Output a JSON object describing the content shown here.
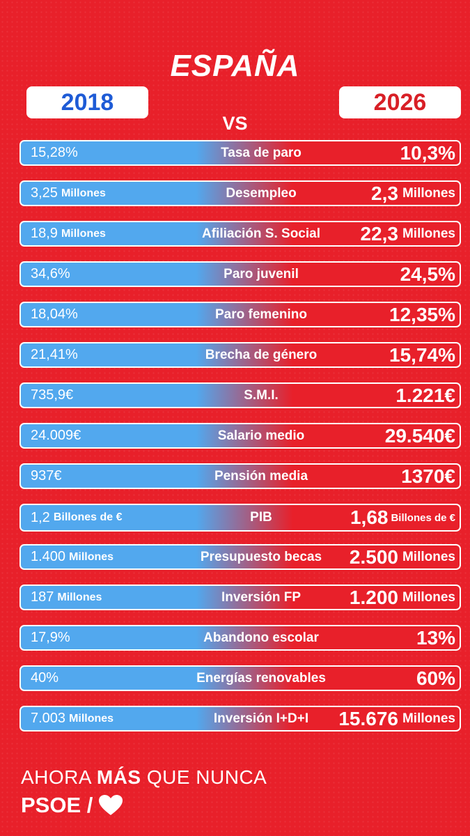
{
  "title": "ESPAÑA",
  "year_left": "2018",
  "year_right": "2026",
  "vs": "VS",
  "rows": [
    {
      "label": "Tasa de paro",
      "left_value": "15,28%",
      "left_unit": "",
      "right_value": "10,3%",
      "right_unit": ""
    },
    {
      "label": "Desempleo",
      "left_value": "3,25",
      "left_unit": "Millones",
      "right_value": "2,3",
      "right_unit": "Millones"
    },
    {
      "label": "Afiliación S. Social",
      "left_value": "18,9",
      "left_unit": "Millones",
      "right_value": "22,3",
      "right_unit": "Millones"
    },
    {
      "label": "Paro juvenil",
      "left_value": "34,6%",
      "left_unit": "",
      "right_value": "24,5%",
      "right_unit": ""
    },
    {
      "label": "Paro femenino",
      "left_value": "18,04%",
      "left_unit": "",
      "right_value": "12,35%",
      "right_unit": ""
    },
    {
      "label": "Brecha de género",
      "left_value": "21,41%",
      "left_unit": "",
      "right_value": "15,74%",
      "right_unit": ""
    },
    {
      "label": "S.M.I.",
      "left_value": "735,9€",
      "left_unit": "",
      "right_value": "1.221€",
      "right_unit": ""
    },
    {
      "label": "Salario medio",
      "left_value": "24.009€",
      "left_unit": "",
      "right_value": "29.540€",
      "right_unit": ""
    },
    {
      "label": "Pensión media",
      "left_value": "937€",
      "left_unit": "",
      "right_value": "1370€",
      "right_unit": ""
    },
    {
      "label": "PIB",
      "left_value": "1,2",
      "left_unit": "Billones de €",
      "right_value": "1,68",
      "right_unit": "Billones de €"
    },
    {
      "label": "Presupuesto becas",
      "left_value": "1.400",
      "left_unit": "Millones",
      "right_value": "2.500",
      "right_unit": "Millones"
    },
    {
      "label": "Inversión FP",
      "left_value": "187",
      "left_unit": "Millones",
      "right_value": "1.200",
      "right_unit": "Millones"
    },
    {
      "label": "Abandono escolar",
      "left_value": "17,9%",
      "left_unit": "",
      "right_value": "13%",
      "right_unit": ""
    },
    {
      "label": "Energías renovables",
      "left_value": "40%",
      "left_unit": "",
      "right_value": "60%",
      "right_unit": ""
    },
    {
      "label": "Inversión I+D+I",
      "left_value": "7.003",
      "left_unit": "Millones",
      "right_value": "15.676",
      "right_unit": "Millones"
    }
  ],
  "footer": {
    "line1_a": "AHORA",
    "line1_bold": "MÁS",
    "line1_b": "QUE NUNCA",
    "brand": "PSOE /",
    "heart_icon": "heart-icon"
  },
  "colors": {
    "background": "#e8202a",
    "blue": "#52a8ee",
    "year_left": "#1e5bd6",
    "year_right": "#d81f26"
  }
}
